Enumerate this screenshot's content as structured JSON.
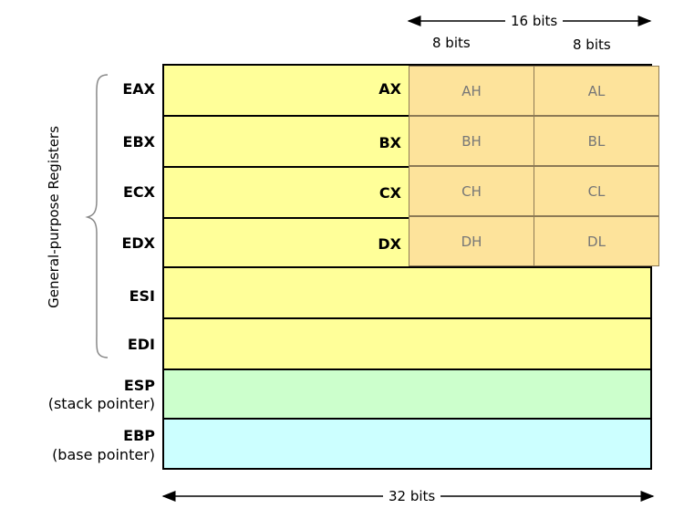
{
  "widths": {
    "top": "16 bits",
    "byte_high": "8 bits",
    "byte_low": "8 bits",
    "bottom": "32 bits"
  },
  "group_label": "General-purpose Registers",
  "registers": [
    {
      "name": "EAX",
      "sub16": "AX",
      "high": "AH",
      "low": "AL"
    },
    {
      "name": "EBX",
      "sub16": "BX",
      "high": "BH",
      "low": "BL"
    },
    {
      "name": "ECX",
      "sub16": "CX",
      "high": "CH",
      "low": "CL"
    },
    {
      "name": "EDX",
      "sub16": "DX",
      "high": "DH",
      "low": "DL"
    },
    {
      "name": "ESI"
    },
    {
      "name": "EDI"
    },
    {
      "name": "ESP",
      "desc": "(stack pointer)"
    },
    {
      "name": "EBP",
      "desc": "(base pointer)"
    }
  ],
  "colors": {
    "general": "#ffff99",
    "byte_cells": "#fde39b",
    "stack_pointer": "#ccffcc",
    "base_pointer": "#ccffff"
  }
}
